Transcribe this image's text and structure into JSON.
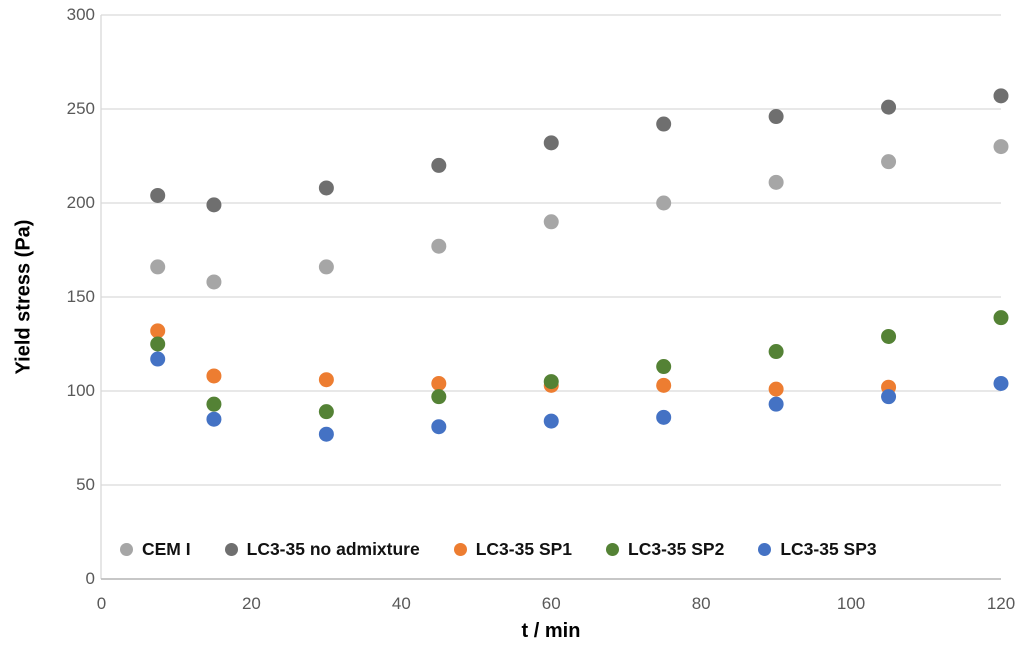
{
  "figure": {
    "x_axis_title": "t / min",
    "y_axis_title": "Yield stress (Pa)"
  },
  "colors": {
    "gridline": "#d9d9d9",
    "axis_line": "#bfbfbf",
    "tick_text": "#595959",
    "title_text": "#000000"
  },
  "chart_data": {
    "type": "scatter",
    "title": "",
    "xlabel": "t / min",
    "ylabel": "Yield stress (Pa)",
    "xlim": [
      0,
      120
    ],
    "ylim": [
      0,
      300
    ],
    "x_ticks": [
      0,
      20,
      40,
      60,
      80,
      100,
      120
    ],
    "y_ticks": [
      0,
      50,
      100,
      150,
      200,
      250,
      300
    ],
    "grid": "horizontal-only",
    "legend_position": "inside-bottom",
    "marker": "circle",
    "x": [
      7.5,
      15,
      30,
      45,
      60,
      75,
      90,
      105,
      120
    ],
    "series": [
      {
        "name": "CEM I",
        "color": "#a6a6a6",
        "values": [
          166,
          158,
          166,
          177,
          190,
          200,
          211,
          222,
          230
        ]
      },
      {
        "name": "LC3-35 no admixture",
        "color": "#6f6f6f",
        "values": [
          204,
          199,
          208,
          220,
          232,
          242,
          246,
          251,
          257
        ]
      },
      {
        "name": "LC3-35 SP1",
        "color": "#ed7d31",
        "values": [
          132,
          108,
          106,
          104,
          103,
          103,
          101,
          102,
          null
        ]
      },
      {
        "name": "LC3-35 SP2",
        "color": "#548235",
        "values": [
          125,
          93,
          89,
          97,
          105,
          113,
          121,
          129,
          139
        ]
      },
      {
        "name": "LC3-35 SP3",
        "color": "#4472c4",
        "values": [
          117,
          85,
          77,
          81,
          84,
          86,
          93,
          97,
          104
        ]
      }
    ]
  }
}
